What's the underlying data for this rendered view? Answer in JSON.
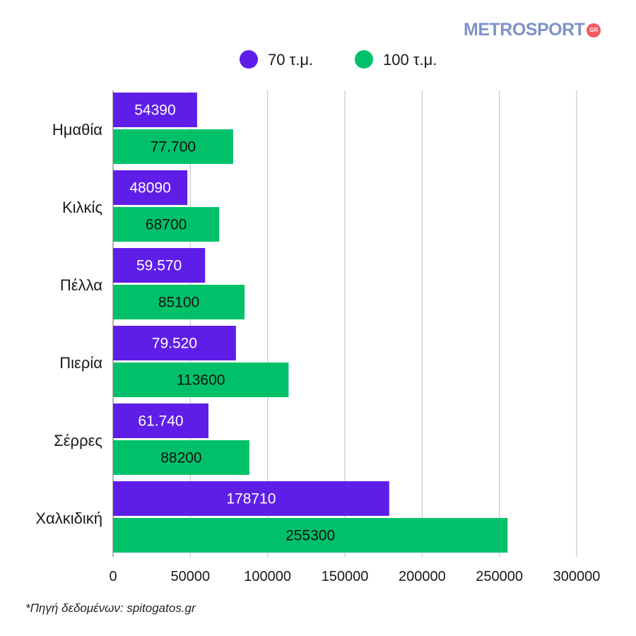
{
  "brand": {
    "logo_text": "METROSPORT",
    "logo_badge": "GR",
    "logo_color": "#7d92c8",
    "badge_color": "#f05a61"
  },
  "footnote": "*Πηγή δεδομένων:  spitogatos.gr",
  "chart_data": {
    "type": "bar",
    "orientation": "horizontal",
    "title": "",
    "xlabel": "",
    "ylabel": "",
    "categories": [
      "Ημαθία",
      "Κιλκίς",
      "Πέλλα",
      "Πιερία",
      "Σέρρες",
      "Χαλκιδική"
    ],
    "series": [
      {
        "name": "70 τ.μ.",
        "color": "#5f1ee8",
        "values": [
          54390,
          48090,
          59570,
          79520,
          61740,
          178710
        ],
        "labels": [
          "54390",
          "48090",
          "59.570",
          "79.520",
          "61.740",
          "178710"
        ]
      },
      {
        "name": "100 τ.μ.",
        "color": "#00c16a",
        "values": [
          77700,
          68700,
          85100,
          113600,
          88200,
          255300
        ],
        "labels": [
          "77.700",
          "68700",
          "85100",
          "113600",
          "88200",
          "255300"
        ]
      }
    ],
    "xlim": [
      0,
      300000
    ],
    "xticks": [
      0,
      50000,
      100000,
      150000,
      200000,
      250000,
      300000
    ],
    "xtick_labels": [
      "0",
      "50000",
      "100000",
      "150000",
      "200000",
      "250000",
      "300000"
    ],
    "grid": true,
    "legend_position": "top-center"
  }
}
